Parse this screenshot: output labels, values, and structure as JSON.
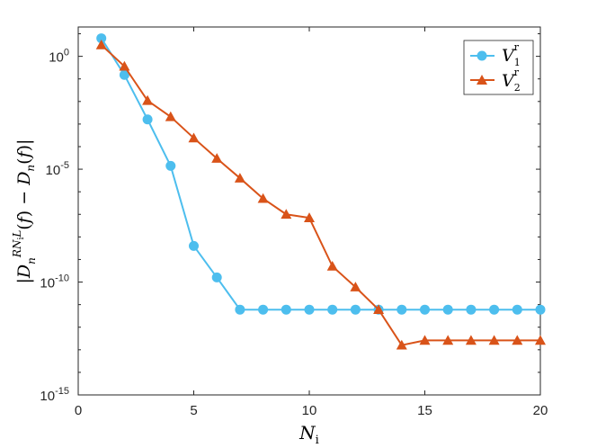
{
  "chart_data": {
    "type": "line",
    "x": [
      1,
      2,
      3,
      4,
      5,
      6,
      7,
      8,
      9,
      10,
      11,
      12,
      13,
      14,
      15,
      16,
      17,
      18,
      19,
      20
    ],
    "series": [
      {
        "name": "V_1^r",
        "legend_base": "V",
        "legend_sub": "1",
        "legend_sup": "r",
        "color": "#4DBEEE",
        "marker": "circle",
        "values": [
          6.3,
          0.15,
          0.0016,
          1.4e-05,
          4e-09,
          1.6e-10,
          6e-12,
          6e-12,
          6e-12,
          6e-12,
          6e-12,
          6e-12,
          6e-12,
          6e-12,
          6e-12,
          6e-12,
          6e-12,
          6e-12,
          6e-12,
          6e-12
        ]
      },
      {
        "name": "V_2^r",
        "legend_base": "V",
        "legend_sub": "2",
        "legend_sup": "r",
        "color": "#D95319",
        "marker": "triangle",
        "values": [
          3.2,
          0.36,
          0.011,
          0.0021,
          0.00024,
          3e-05,
          4e-06,
          5e-07,
          1e-07,
          7e-08,
          5e-10,
          6e-11,
          6e-12,
          1.6e-13,
          2.6e-13,
          2.6e-13,
          2.6e-13,
          2.6e-13,
          2.6e-13,
          2.6e-13
        ]
      }
    ],
    "xlim": [
      0,
      20
    ],
    "ylim_log10": [
      -15,
      1.3
    ],
    "yscale": "log",
    "xticks": [
      "0",
      "5",
      "10",
      "15",
      "20"
    ],
    "yticks": [
      {
        "base": "10",
        "exp": "-15",
        "log": -15
      },
      {
        "base": "10",
        "exp": "-10",
        "log": -10
      },
      {
        "base": "10",
        "exp": "-5",
        "log": -5
      },
      {
        "base": "10",
        "exp": "0",
        "log": 0
      }
    ],
    "xlabel": {
      "base": "N",
      "sub": "i"
    },
    "ylabel": "|D_n^{RN_iL}(f) − D_n(f)|",
    "grid": false,
    "legend_position": "top-right"
  }
}
